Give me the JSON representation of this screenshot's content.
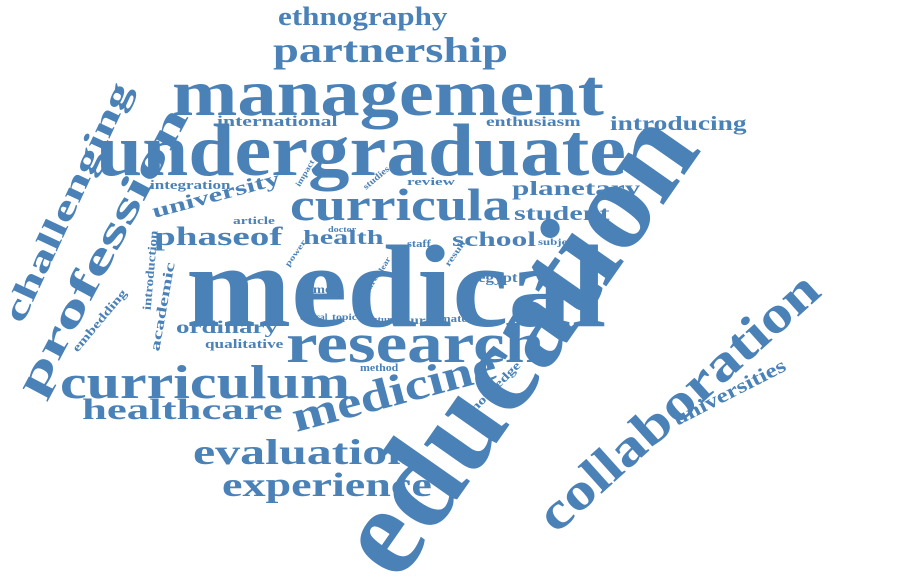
{
  "color": "#4a81b7",
  "words": [
    {
      "text": "education",
      "weight": 10
    },
    {
      "text": "medical",
      "weight": 9
    },
    {
      "text": "undergraduate",
      "weight": 7
    },
    {
      "text": "management",
      "weight": 6
    },
    {
      "text": "research",
      "weight": 5
    },
    {
      "text": "collaboration",
      "weight": 5
    },
    {
      "text": "curriculum",
      "weight": 5
    },
    {
      "text": "curricula",
      "weight": 4
    },
    {
      "text": "medicine",
      "weight": 4
    },
    {
      "text": "profession",
      "weight": 4
    },
    {
      "text": "partnership",
      "weight": 4
    },
    {
      "text": "evaluation",
      "weight": 4
    },
    {
      "text": "experience",
      "weight": 3
    },
    {
      "text": "healthcare",
      "weight": 3
    },
    {
      "text": "challenging",
      "weight": 3
    },
    {
      "text": "ethnography",
      "weight": 3
    },
    {
      "text": "phaseof",
      "weight": 3
    },
    {
      "text": "introducing",
      "weight": 2
    },
    {
      "text": "planetary",
      "weight": 2
    },
    {
      "text": "student",
      "weight": 2
    },
    {
      "text": "university",
      "weight": 2
    },
    {
      "text": "universities",
      "weight": 2
    },
    {
      "text": "health",
      "weight": 2
    },
    {
      "text": "school",
      "weight": 2
    },
    {
      "text": "ordinary",
      "weight": 2
    },
    {
      "text": "international",
      "weight": 2
    },
    {
      "text": "enthusiasm",
      "weight": 2
    },
    {
      "text": "integration",
      "weight": 1
    },
    {
      "text": "qualitative",
      "weight": 1
    },
    {
      "text": "academic",
      "weight": 1
    },
    {
      "text": "introduction",
      "weight": 1
    },
    {
      "text": "embedding",
      "weight": 1
    },
    {
      "text": "egypt",
      "weight": 1
    },
    {
      "text": "knowledge",
      "weight": 1
    },
    {
      "text": "review",
      "weight": 1
    },
    {
      "text": "studies",
      "weight": 1
    },
    {
      "text": "article",
      "weight": 1
    },
    {
      "text": "power",
      "weight": 1
    },
    {
      "text": "doctor",
      "weight": 1
    },
    {
      "text": "impact",
      "weight": 1
    },
    {
      "text": "staff",
      "weight": 1
    },
    {
      "text": "subject",
      "weight": 1
    },
    {
      "text": "meta",
      "weight": 1
    },
    {
      "text": "topic",
      "weight": 1
    },
    {
      "text": "ethical",
      "weight": 1
    },
    {
      "text": "future",
      "weight": 1
    },
    {
      "text": "course",
      "weight": 1
    },
    {
      "text": "climate",
      "weight": 1
    },
    {
      "text": "method",
      "weight": 1
    },
    {
      "text": "area",
      "weight": 1
    },
    {
      "text": "clear",
      "weight": 1
    },
    {
      "text": "third",
      "weight": 1
    },
    {
      "text": "result",
      "weight": 1
    }
  ]
}
